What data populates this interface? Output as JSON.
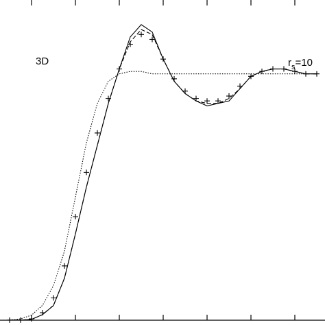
{
  "chart_data": {
    "type": "line",
    "annotations": [
      "3D"
    ],
    "density_label": {
      "base": "r",
      "sub": "s",
      "rest": "=10"
    },
    "x": [
      0.5,
      0.75,
      1,
      1.25,
      1.5,
      1.75,
      2,
      2.25,
      2.5,
      2.75,
      3,
      3.25,
      3.5,
      3.75,
      4,
      4.25,
      4.5,
      4.75,
      5,
      5.25,
      5.5,
      5.75,
      6,
      6.25,
      6.5,
      6.75,
      7,
      7.25,
      7.5
    ],
    "series": [
      {
        "style": "solid",
        "color": "#000000",
        "values": [
          0,
          0,
          0.003,
          0.022,
          0.059,
          0.17,
          0.35,
          0.54,
          0.71,
          0.88,
          1.02,
          1.15,
          1.2,
          1.17,
          1.06,
          0.97,
          0.92,
          0.89,
          0.87,
          0.88,
          0.89,
          0.94,
          0.99,
          1.01,
          1.02,
          1.02,
          1.01,
          1.0,
          1.0
        ]
      },
      {
        "style": "dashed",
        "color": "#000000",
        "values": [
          0,
          0,
          0.003,
          0.022,
          0.06,
          0.17,
          0.35,
          0.54,
          0.71,
          0.88,
          1.02,
          1.13,
          1.18,
          1.16,
          1.06,
          0.97,
          0.92,
          0.89,
          0.88,
          0.88,
          0.9,
          0.94,
          0.99,
          1.01,
          1.02,
          1.02,
          1.01,
          1.0,
          1.0
        ]
      },
      {
        "style": "dotted",
        "color": "#000000",
        "values": [
          0,
          0.005,
          0.02,
          0.06,
          0.14,
          0.28,
          0.5,
          0.72,
          0.88,
          0.97,
          1.0,
          1.01,
          1.01,
          1.0,
          1.0,
          1.0,
          1.0,
          1.0,
          1.0,
          1.0,
          1.0,
          1.0,
          1.0,
          1.0,
          1.0,
          1.0,
          1.0,
          1.0,
          1.0
        ]
      },
      {
        "style": "markers",
        "color": "#000000",
        "values": [
          0,
          0,
          0.005,
          0.03,
          0.09,
          0.22,
          0.42,
          0.6,
          0.76,
          0.9,
          1.02,
          1.12,
          1.16,
          1.14,
          1.06,
          0.98,
          0.93,
          0.9,
          0.89,
          0.89,
          0.91,
          0.95,
          0.99,
          1.01,
          1.02,
          1.02,
          1.01,
          1.0,
          1.0
        ]
      }
    ],
    "xlim": [
      0.28125,
      7.6875
    ],
    "xticks": [
      1,
      2,
      3,
      4,
      5,
      6,
      7
    ],
    "ylim": [
      -0.02,
      1.3
    ]
  }
}
